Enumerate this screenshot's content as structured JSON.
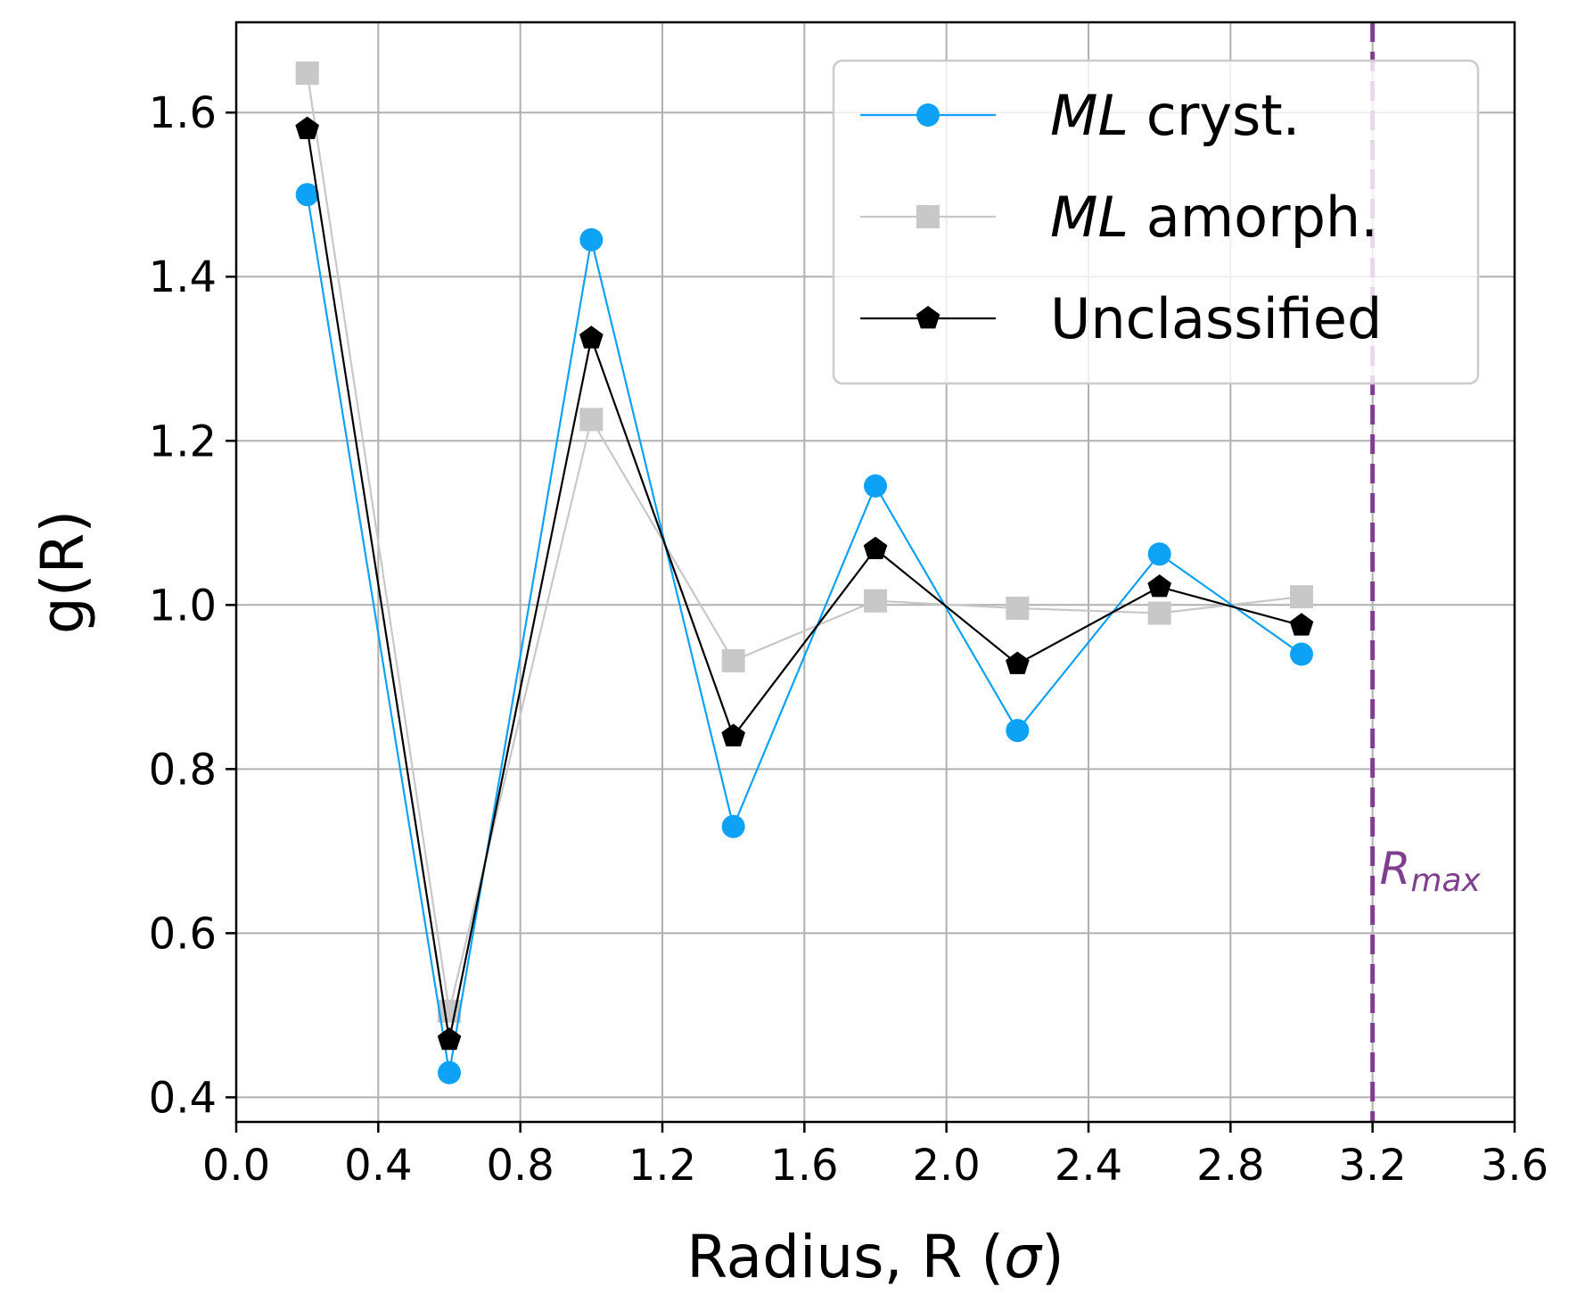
{
  "chart_data": {
    "type": "line",
    "xlabel": "Radius, R (σ)",
    "ylabel": "g(R)",
    "xlim": [
      0.0,
      3.6
    ],
    "ylim": [
      0.37,
      1.71
    ],
    "x_ticks": [
      "0.0",
      "0.4",
      "0.8",
      "1.2",
      "1.6",
      "2.0",
      "2.4",
      "2.8",
      "3.2",
      "3.6"
    ],
    "y_ticks": [
      "0.4",
      "0.6",
      "0.8",
      "1.0",
      "1.2",
      "1.4",
      "1.6"
    ],
    "grid": true,
    "legend_position": "top-right",
    "x": [
      0.2,
      0.6,
      1.0,
      1.4,
      1.8,
      2.2,
      2.6,
      3.0
    ],
    "series": [
      {
        "name": "ML cryst.",
        "name_italic": "ML",
        "name_rest": " cryst.",
        "marker": "circle",
        "color": "#0da2f5",
        "values": [
          1.5,
          0.43,
          1.445,
          0.73,
          1.145,
          0.847,
          1.062,
          0.94
        ]
      },
      {
        "name": "ML amorph.",
        "name_italic": "ML",
        "name_rest": " amorph.",
        "marker": "square",
        "color": "#c8c8c8",
        "values": [
          1.648,
          0.505,
          1.226,
          0.932,
          1.005,
          0.996,
          0.99,
          1.01
        ]
      },
      {
        "name": "Unclassified",
        "name_italic": "",
        "name_rest": "Unclassified",
        "marker": "pentagon",
        "color": "#000000",
        "values": [
          1.58,
          0.47,
          1.325,
          0.84,
          1.068,
          0.928,
          1.022,
          0.975
        ]
      }
    ],
    "annotations": [
      {
        "type": "vline",
        "x": 3.2,
        "color": "#7f3f8f",
        "label_base": "R",
        "label_sub": "max"
      }
    ]
  }
}
